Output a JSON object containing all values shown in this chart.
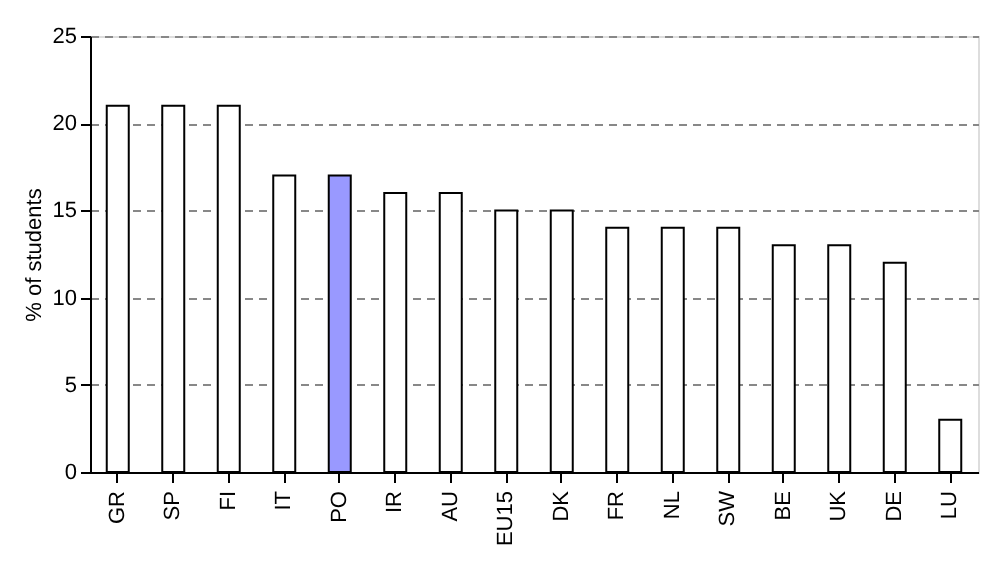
{
  "chart_data": {
    "type": "bar",
    "ylabel": "% of students",
    "categories": [
      "GR",
      "SP",
      "FI",
      "IT",
      "PO",
      "IR",
      "AU",
      "EU15",
      "DK",
      "FR",
      "NL",
      "SW",
      "BE",
      "UK",
      "DE",
      "LU"
    ],
    "values": [
      21,
      21,
      21,
      17,
      17,
      16,
      16,
      15,
      15,
      14,
      14,
      14,
      13,
      13,
      12,
      3
    ],
    "colors": [
      "#ffffff",
      "#ffffff",
      "#ffffff",
      "#ffffff",
      "#9999ff",
      "#ffffff",
      "#ffffff",
      "#ffffff",
      "#ffffff",
      "#ffffff",
      "#ffffff",
      "#ffffff",
      "#ffffff",
      "#ffffff",
      "#ffffff",
      "#ffffff"
    ],
    "ylim": [
      0,
      25
    ],
    "yticks": [
      0,
      5,
      10,
      15,
      20,
      25
    ],
    "grid": "y"
  }
}
